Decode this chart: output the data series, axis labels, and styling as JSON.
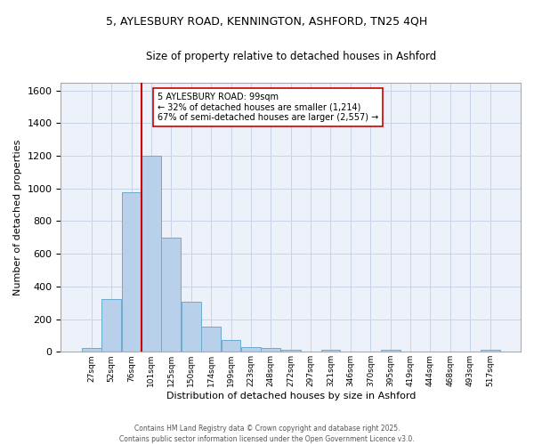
{
  "title_line1": "5, AYLESBURY ROAD, KENNINGTON, ASHFORD, TN25 4QH",
  "title_line2": "Size of property relative to detached houses in Ashford",
  "xlabel": "Distribution of detached houses by size in Ashford",
  "ylabel": "Number of detached properties",
  "bar_labels": [
    "27sqm",
    "52sqm",
    "76sqm",
    "101sqm",
    "125sqm",
    "150sqm",
    "174sqm",
    "199sqm",
    "223sqm",
    "248sqm",
    "272sqm",
    "297sqm",
    "321sqm",
    "346sqm",
    "370sqm",
    "395sqm",
    "419sqm",
    "444sqm",
    "468sqm",
    "493sqm",
    "517sqm"
  ],
  "bar_values": [
    25,
    325,
    975,
    1200,
    700,
    305,
    155,
    70,
    30,
    25,
    10,
    0,
    10,
    0,
    0,
    10,
    0,
    0,
    0,
    0,
    10
  ],
  "bar_color": "#b8d0ea",
  "bar_edge_color": "#6aabd2",
  "vline_color": "#cc0000",
  "annotation_text": "5 AYLESBURY ROAD: 99sqm\n← 32% of detached houses are smaller (1,214)\n67% of semi-detached houses are larger (2,557) →",
  "annotation_box_color": "#ffffff",
  "annotation_box_edge": "#cc0000",
  "ylim": [
    0,
    1650
  ],
  "yticks": [
    0,
    200,
    400,
    600,
    800,
    1000,
    1200,
    1400,
    1600
  ],
  "grid_color": "#c8d4e8",
  "background_color": "#edf2fa",
  "footer_line1": "Contains HM Land Registry data © Crown copyright and database right 2025.",
  "footer_line2": "Contains public sector information licensed under the Open Government Licence v3.0."
}
